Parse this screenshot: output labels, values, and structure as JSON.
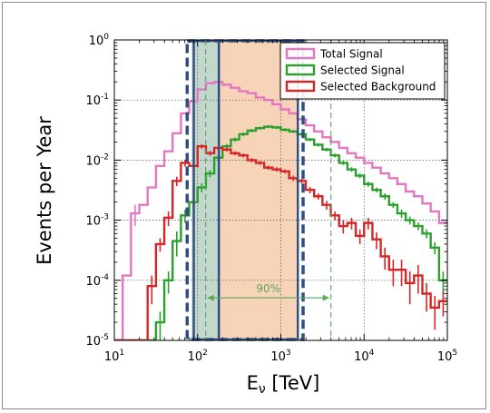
{
  "chart_data": {
    "type": "line",
    "xlabel_main": "E",
    "xlabel_sub": "ν",
    "xlabel_unit": " [TeV]",
    "ylabel": "Events per Year",
    "x_scale": "log",
    "y_scale": "log",
    "xlim": [
      10,
      100000
    ],
    "ylim": [
      1e-05,
      1
    ],
    "grid": true,
    "legend_position": "top-right",
    "x_ticks": [
      {
        "base": "10",
        "exp": "1",
        "value": 10
      },
      {
        "base": "10",
        "exp": "2",
        "value": 100
      },
      {
        "base": "10",
        "exp": "3",
        "value": 1000
      },
      {
        "base": "10",
        "exp": "4",
        "value": 10000
      },
      {
        "base": "10",
        "exp": "5",
        "value": 100000
      }
    ],
    "y_ticks": [
      {
        "base": "10",
        "exp": "-5",
        "value": 1e-05
      },
      {
        "base": "10",
        "exp": "-4",
        "value": 0.0001
      },
      {
        "base": "10",
        "exp": "-3",
        "value": 0.001
      },
      {
        "base": "10",
        "exp": "-2",
        "value": 0.01
      },
      {
        "base": "10",
        "exp": "-1",
        "value": 0.1
      },
      {
        "base": "10",
        "exp": "0",
        "value": 1
      }
    ],
    "bin_edges_log10": [
      1.0,
      1.1,
      1.2,
      1.3,
      1.4,
      1.5,
      1.6,
      1.7,
      1.8,
      1.9,
      2.0,
      2.1,
      2.2,
      2.3,
      2.4,
      2.5,
      2.6,
      2.7,
      2.8,
      2.9,
      3.0,
      3.1,
      3.2,
      3.3,
      3.4,
      3.5,
      3.6,
      3.7,
      3.8,
      3.9,
      4.0,
      4.1,
      4.2,
      4.3,
      4.4,
      4.5,
      4.6,
      4.7,
      4.8,
      4.9,
      5.0
    ],
    "series": [
      {
        "name": "Total Signal",
        "color": "#e377c2",
        "values": [
          1e-05,
          0.00012,
          0.0013,
          0.0018,
          0.0035,
          0.008,
          0.014,
          0.028,
          0.06,
          0.095,
          0.15,
          0.19,
          0.2,
          0.18,
          0.16,
          0.14,
          0.13,
          0.11,
          0.1,
          0.085,
          0.07,
          0.06,
          0.048,
          0.038,
          0.03,
          0.024,
          0.02,
          0.016,
          0.013,
          0.011,
          0.009,
          0.0075,
          0.006,
          0.005,
          0.004,
          0.003,
          0.0025,
          0.0019,
          0.0014,
          0.0009
        ],
        "errors": [
          0,
          0,
          0.0005,
          0,
          0,
          0,
          0,
          0,
          0,
          0,
          0,
          0,
          0,
          0,
          0,
          0,
          0,
          0,
          0,
          0,
          0,
          0,
          0,
          0,
          0,
          0,
          0,
          0,
          0,
          0,
          0,
          0,
          0,
          0,
          0,
          0,
          0,
          0,
          0,
          0
        ]
      },
      {
        "name": "Selected Signal",
        "color": "#2ca02c",
        "values": [
          1e-05,
          1e-05,
          1e-05,
          1e-05,
          1e-05,
          2e-05,
          0.0001,
          0.00045,
          0.0012,
          0.002,
          0.0035,
          0.006,
          0.011,
          0.017,
          0.022,
          0.027,
          0.031,
          0.034,
          0.036,
          0.035,
          0.032,
          0.03,
          0.027,
          0.022,
          0.018,
          0.015,
          0.012,
          0.009,
          0.007,
          0.0055,
          0.004,
          0.0032,
          0.0025,
          0.0018,
          0.0013,
          0.001,
          0.0008,
          0.0006,
          0.00035,
          0.0001
        ],
        "errors": [
          0,
          0,
          0,
          0,
          0,
          1e-05,
          4e-05,
          0.0002,
          0.0003,
          0.0004,
          0.0006,
          0.0008,
          0.0012,
          0.0015,
          0.0018,
          0.002,
          0.002,
          0.002,
          0.002,
          0.002,
          0.002,
          0.0018,
          0.0016,
          0.0014,
          0.0012,
          0.001,
          0.0009,
          0.0007,
          0.0006,
          0.0005,
          0.0004,
          0.0003,
          0.0003,
          0.0002,
          0.0002,
          0.00015,
          0.00012,
          0.0001,
          8e-05,
          4e-05
        ]
      },
      {
        "name": "Selected Background",
        "color": "#d62728",
        "values": [
          1e-05,
          1e-05,
          1e-05,
          1e-05,
          8e-05,
          0.0004,
          0.0011,
          0.0045,
          0.009,
          0.008,
          0.017,
          0.013,
          0.016,
          0.015,
          0.013,
          0.012,
          0.01,
          0.009,
          0.0075,
          0.007,
          0.0065,
          0.005,
          0.0045,
          0.0032,
          0.0025,
          0.0018,
          0.0012,
          0.0008,
          0.0009,
          0.00055,
          0.0009,
          0.00048,
          0.00025,
          0.00015,
          0.00015,
          9e-05,
          0.00012,
          6e-05,
          3.5e-05,
          4.5e-05
        ],
        "errors": [
          0,
          0,
          0,
          0,
          4e-05,
          0.0001,
          0.0003,
          0.0008,
          0.0012,
          0.0012,
          0.0015,
          0.0012,
          0.0012,
          0.0011,
          0.001,
          0.0009,
          0.0008,
          0.0007,
          0.0006,
          0.0006,
          0.0005,
          0.0005,
          0.0004,
          0.0004,
          0.0003,
          0.0003,
          0.0002,
          0.0002,
          0.0002,
          0.00015,
          0.0002,
          0.00015,
          0.0001,
          7e-05,
          7e-05,
          5e-05,
          6e-05,
          3e-05,
          2e-05,
          2e-05
        ]
      }
    ],
    "shaded_band": {
      "x_range": [
        180,
        1600
      ],
      "color": "#f4c09a"
    },
    "thin_band": {
      "x_range": [
        85,
        180
      ],
      "color": "#b8d0c4"
    },
    "boxes": [
      {
        "x_range": [
          75,
          1850
        ],
        "color": "#2e4f80",
        "style": "dashed"
      },
      {
        "x_range": [
          90,
          180
        ],
        "color": "#2e4f80",
        "style": "solid"
      },
      {
        "x_range": [
          180,
          1600
        ],
        "color": "#2e4f80",
        "style": "solid"
      }
    ],
    "green_dashed_lines": [
      125,
      4000
    ],
    "annotation": {
      "text": "90%",
      "x_from": 125,
      "x_to": 4000,
      "y": 2e-05,
      "color": "#5aa85a"
    }
  }
}
